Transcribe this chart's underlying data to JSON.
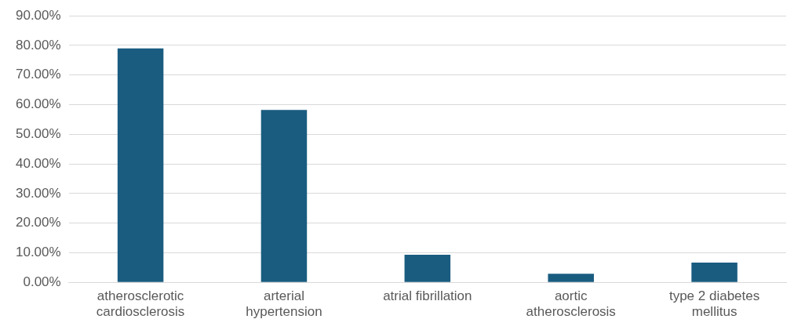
{
  "chart_data": {
    "type": "bar",
    "categories": [
      "atherosclerotic cardiosclerosis",
      "arterial hypertension",
      "atrial fibrillation",
      "aortic atherosclerosis",
      "type 2 diabetes mellitus"
    ],
    "values": [
      79.0,
      58.2,
      9.3,
      2.9,
      6.7
    ],
    "color": "#1a5c80",
    "ylim": [
      0,
      90
    ],
    "yticks": [
      {
        "value": 0,
        "label": "0.00%"
      },
      {
        "value": 10,
        "label": "10.00%"
      },
      {
        "value": 20,
        "label": "20.00%"
      },
      {
        "value": 30,
        "label": "30.00%"
      },
      {
        "value": 40,
        "label": "40.00%"
      },
      {
        "value": 50,
        "label": "50.00%"
      },
      {
        "value": 60,
        "label": "60.00%"
      },
      {
        "value": 70,
        "label": "70.00%"
      },
      {
        "value": 80,
        "label": "80.00%"
      },
      {
        "value": 90,
        "label": "90.00%"
      }
    ],
    "grid": "y",
    "legend": false
  }
}
